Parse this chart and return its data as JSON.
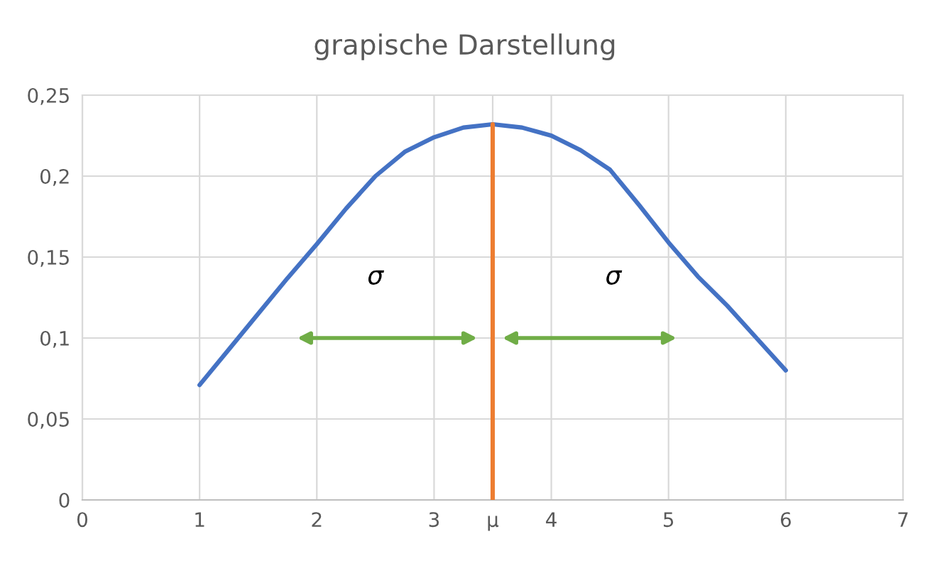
{
  "chart_data": {
    "type": "line",
    "title": "grapische Darstellung",
    "xlim": [
      0,
      7
    ],
    "xticks": [
      0,
      1,
      2,
      3,
      {
        "value": 3.5,
        "label": "μ"
      },
      4,
      5,
      6,
      7
    ],
    "ylim": [
      0,
      0.25
    ],
    "yticks": [
      {
        "value": 0,
        "label": "0"
      },
      {
        "value": 0.05,
        "label": "0,05"
      },
      {
        "value": 0.1,
        "label": "0,1"
      },
      {
        "value": 0.15,
        "label": "0,15"
      },
      {
        "value": 0.2,
        "label": "0,2"
      },
      {
        "value": 0.25,
        "label": "0,25"
      }
    ],
    "grid": true,
    "line_style": "solid",
    "marker": "none",
    "series": [
      {
        "color": "#4472c4",
        "x": [
          1,
          1.25,
          1.5,
          1.75,
          2,
          2.25,
          2.5,
          2.75,
          3,
          3.25,
          3.5,
          3.75,
          4,
          4.25,
          4.5,
          4.75,
          5,
          5.25,
          5.5,
          5.75,
          6
        ],
        "values": [
          0.071,
          0.093,
          0.115,
          0.137,
          0.158,
          0.18,
          0.2,
          0.215,
          0.224,
          0.23,
          0.232,
          0.23,
          0.225,
          0.216,
          0.204,
          0.182,
          0.159,
          0.138,
          0.12,
          0.1,
          0.08
        ]
      },
      {
        "color": "#ed7d31",
        "x": [
          3.5,
          3.5
        ],
        "values": [
          0,
          0.232
        ]
      }
    ],
    "annotations": [
      "σ",
      "σ"
    ]
  }
}
